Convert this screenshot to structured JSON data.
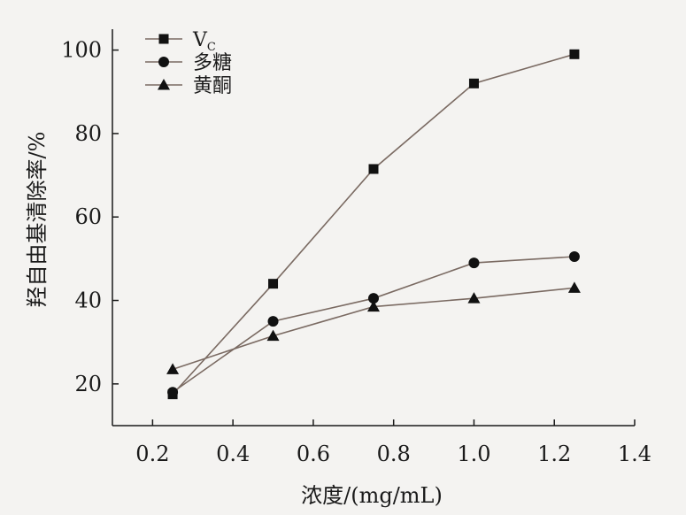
{
  "chart_data": {
    "type": "line",
    "title": "",
    "xlabel": "浓度/(mg/mL)",
    "ylabel": "羟自由基清除率/%",
    "xlim": [
      0.1,
      1.4
    ],
    "ylim": [
      10,
      105
    ],
    "xticks": [
      0.2,
      0.4,
      0.6,
      0.8,
      1.0,
      1.2,
      1.4
    ],
    "xtick_labels": [
      "0.2",
      "0.4",
      "0.6",
      "0.8",
      "1.0",
      "1.2",
      "1.4"
    ],
    "yticks": [
      20,
      40,
      60,
      80,
      100
    ],
    "ytick_labels": [
      "20",
      "40",
      "60",
      "80",
      "100"
    ],
    "grid": false,
    "legend_position": "top-left",
    "x": [
      0.25,
      0.5,
      0.75,
      1.0,
      1.25
    ],
    "series": [
      {
        "name": "V",
        "name_sub": "C",
        "marker": "square",
        "values": [
          17.5,
          44,
          71.5,
          92,
          99
        ]
      },
      {
        "name": "多糖",
        "marker": "circle",
        "values": [
          18,
          35,
          40.5,
          49,
          50.5
        ]
      },
      {
        "name": "黄酮",
        "marker": "triangle",
        "values": [
          23.5,
          31.5,
          38.5,
          40.5,
          43
        ]
      }
    ],
    "colors": {
      "line": "#7a6a62",
      "marker": "#111111",
      "axis": "#1a1a1a",
      "background": "#f4f3f1"
    }
  }
}
